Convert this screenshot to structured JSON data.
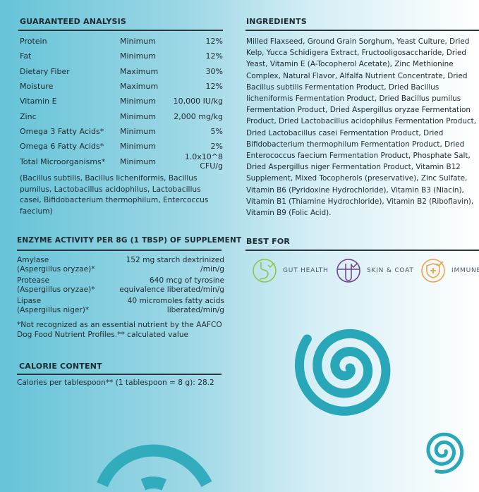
{
  "guaranteed_analysis": {
    "title": "GUARANTEED ANALYSIS",
    "rows": [
      {
        "name": "Protein",
        "qualifier": "Minimum",
        "value": "12%"
      },
      {
        "name": "Fat",
        "qualifier": "Minimum",
        "value": "12%"
      },
      {
        "name": "Dietary Fiber",
        "qualifier": "Maximum",
        "value": "30%"
      },
      {
        "name": "Moisture",
        "qualifier": "Maximum",
        "value": "12%"
      },
      {
        "name": "Vitamin E",
        "qualifier": "Minimum",
        "value": "10,000 IU/kg"
      },
      {
        "name": "Zinc",
        "qualifier": "Minimum",
        "value": "2,000 mg/kg"
      },
      {
        "name": "Omega 3 Fatty Acids*",
        "qualifier": "Minimum",
        "value": "5%"
      },
      {
        "name": "Omega 6 Fatty Acids*",
        "qualifier": "Minimum",
        "value": "2%"
      },
      {
        "name": "Total Microorganisms*",
        "qualifier": "Minimum",
        "value": "1.0x10^8 CFU/g"
      }
    ],
    "note": "(Bacillus subtilis, Bacillus licheniformis, Bacillus pumilus, Lactobacillus acidophilus, Lactobacillus casei, Bifidobacterium thermophilum, Entercoccus faecium)"
  },
  "enzyme_activity": {
    "title": "ENZYME ACTIVITY PER 8G (1 TBSP) OF SUPPLEMENT",
    "rows": [
      {
        "name": "Amylase",
        "source": "(Aspergillus oryzae)*",
        "value1": "152 mg starch dextrinized",
        "value2": "/min/g"
      },
      {
        "name": "Protease",
        "source": "(Aspergillus oryzae)*",
        "value1": "640 mcg of tyrosine",
        "value2": "equivalence liberated/min/g"
      },
      {
        "name": "Lipase",
        "source": "(Aspergillus niger)*",
        "value1": "40 micromoles fatty acids",
        "value2": "liberated/min/g"
      }
    ],
    "footnote": "*Not recognized as an essential nutrient by the AAFCO Dog Food Nutrient Profiles.** calculated value"
  },
  "calorie_content": {
    "title": "CALORIE CONTENT",
    "text": "Calories per tablespoon** (1 tablespoon = 8 g): 28.2"
  },
  "ingredients": {
    "title": "INGREDIENTS",
    "text": "Milled Flaxseed, Ground Grain Sorghum, Yeast Culture, Dried Kelp, Yucca Schidigera Extract, Fructooligosaccharide, Dried Yeast, Vitamin E (A-Tocopherol Acetate), Zinc Methionine Complex, Natural Flavor, Alfalfa Nutrient Concentrate, Dried Bacillus subtilis Fermentation Product, Dried Bacillus licheniformis Fermentation Product, Dried Bacillus pumilus Fermentation Product, Dried Aspergillus oryzae Fermentation Product, Dried Lactobacillus acidophilus Fermentation Product, Dried Lactobacillus casei Fermentation Product, Dried Bifidobacterium thermophilum Fermentation Product, Dried Enterococcus faecium Fermentation Product, Phosphate Salt, Dried Aspergillus niger Fermentation Product, Vitamin B12 Supplement, Mixed Tocopherols (preservative), Zinc Sulfate, Vitamin B6 (Pyridoxine Hydrochloride), Vitamin B3 (Niacin), Vitamin B1 (Thiamine Hydrochloride), Vitamin B2 (Riboflavin), Vitamin B9 (Folic Acid)."
  },
  "best_for": {
    "title": "BEST FOR",
    "items": [
      {
        "label": "GUT HEALTH",
        "icon": "stomach-check-icon",
        "color": "#8cc63f"
      },
      {
        "label": "SKIN & COAT",
        "icon": "hair-follicle-check-icon",
        "color": "#6a3d8f"
      },
      {
        "label": "IMMUNE",
        "icon": "shield-plus-icon",
        "color": "#f0a040"
      }
    ]
  },
  "colors": {
    "spiral": "#27a7b8",
    "text": "#1d2a30"
  }
}
